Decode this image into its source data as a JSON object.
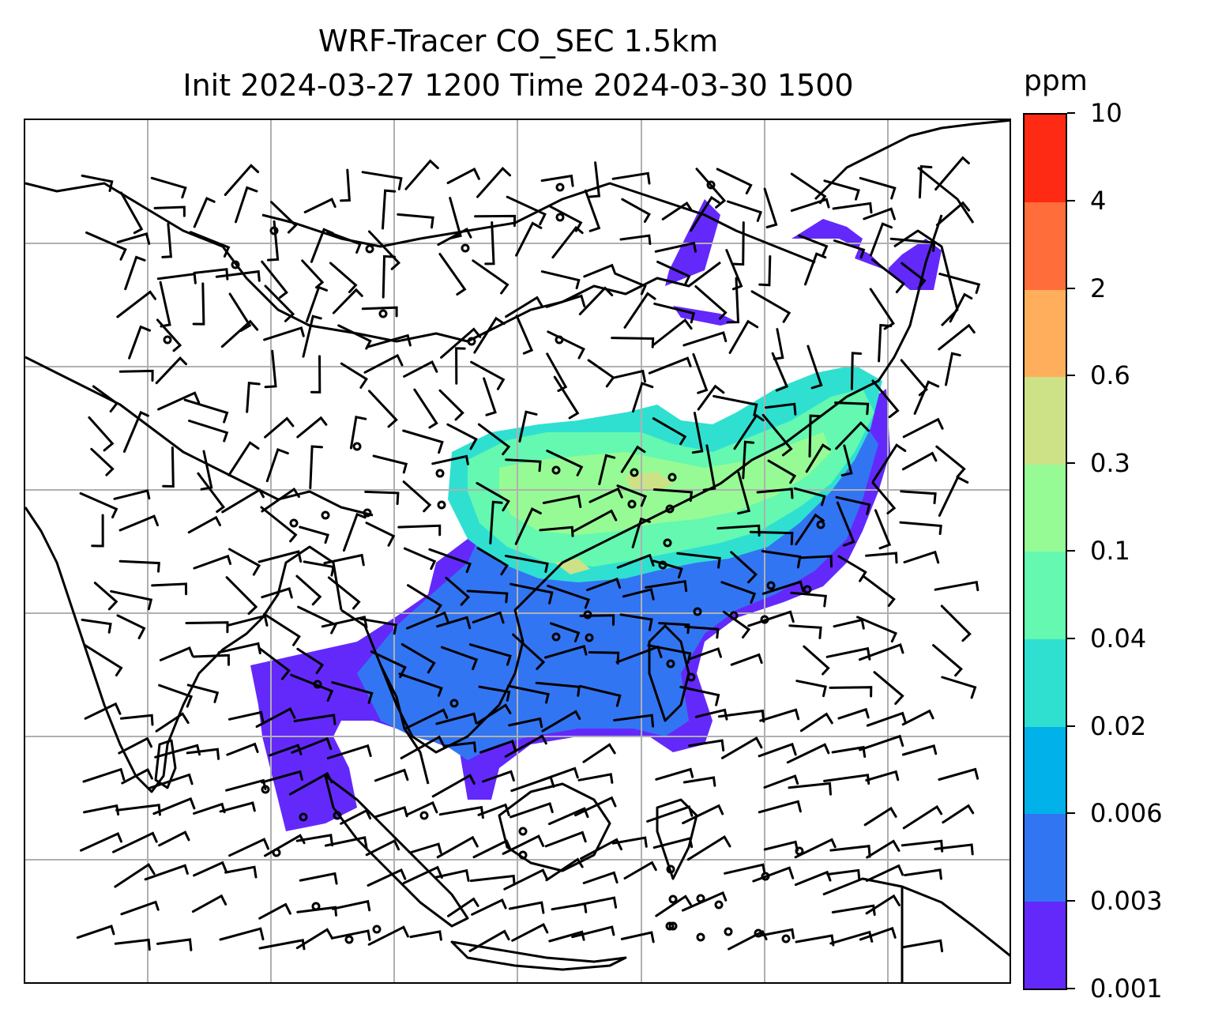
{
  "title": {
    "line1": "WRF-Tracer CO_SEC 1.5km",
    "line2": "Init 2024-03-27 1200 Time 2024-03-30 1500"
  },
  "colorbar": {
    "unit": "ppm",
    "ticks": [
      "0.001",
      "0.003",
      "0.006",
      "0.02",
      "0.04",
      "0.1",
      "0.3",
      "0.6",
      "2",
      "4",
      "10"
    ],
    "colors": [
      "#6329fb",
      "#3275f3",
      "#00b1ea",
      "#2fe0d1",
      "#64f8b0",
      "#97fb95",
      "#cde187",
      "#ffaf5c",
      "#ff6e3a",
      "#ff2a14"
    ]
  },
  "map": {
    "gridlines": true,
    "grid_color": "#b0b0b0",
    "coastline_color": "#000000",
    "plume_levels": [
      "0.001",
      "0.003",
      "0.02",
      "0.04",
      "0.1",
      "0.3"
    ]
  }
}
